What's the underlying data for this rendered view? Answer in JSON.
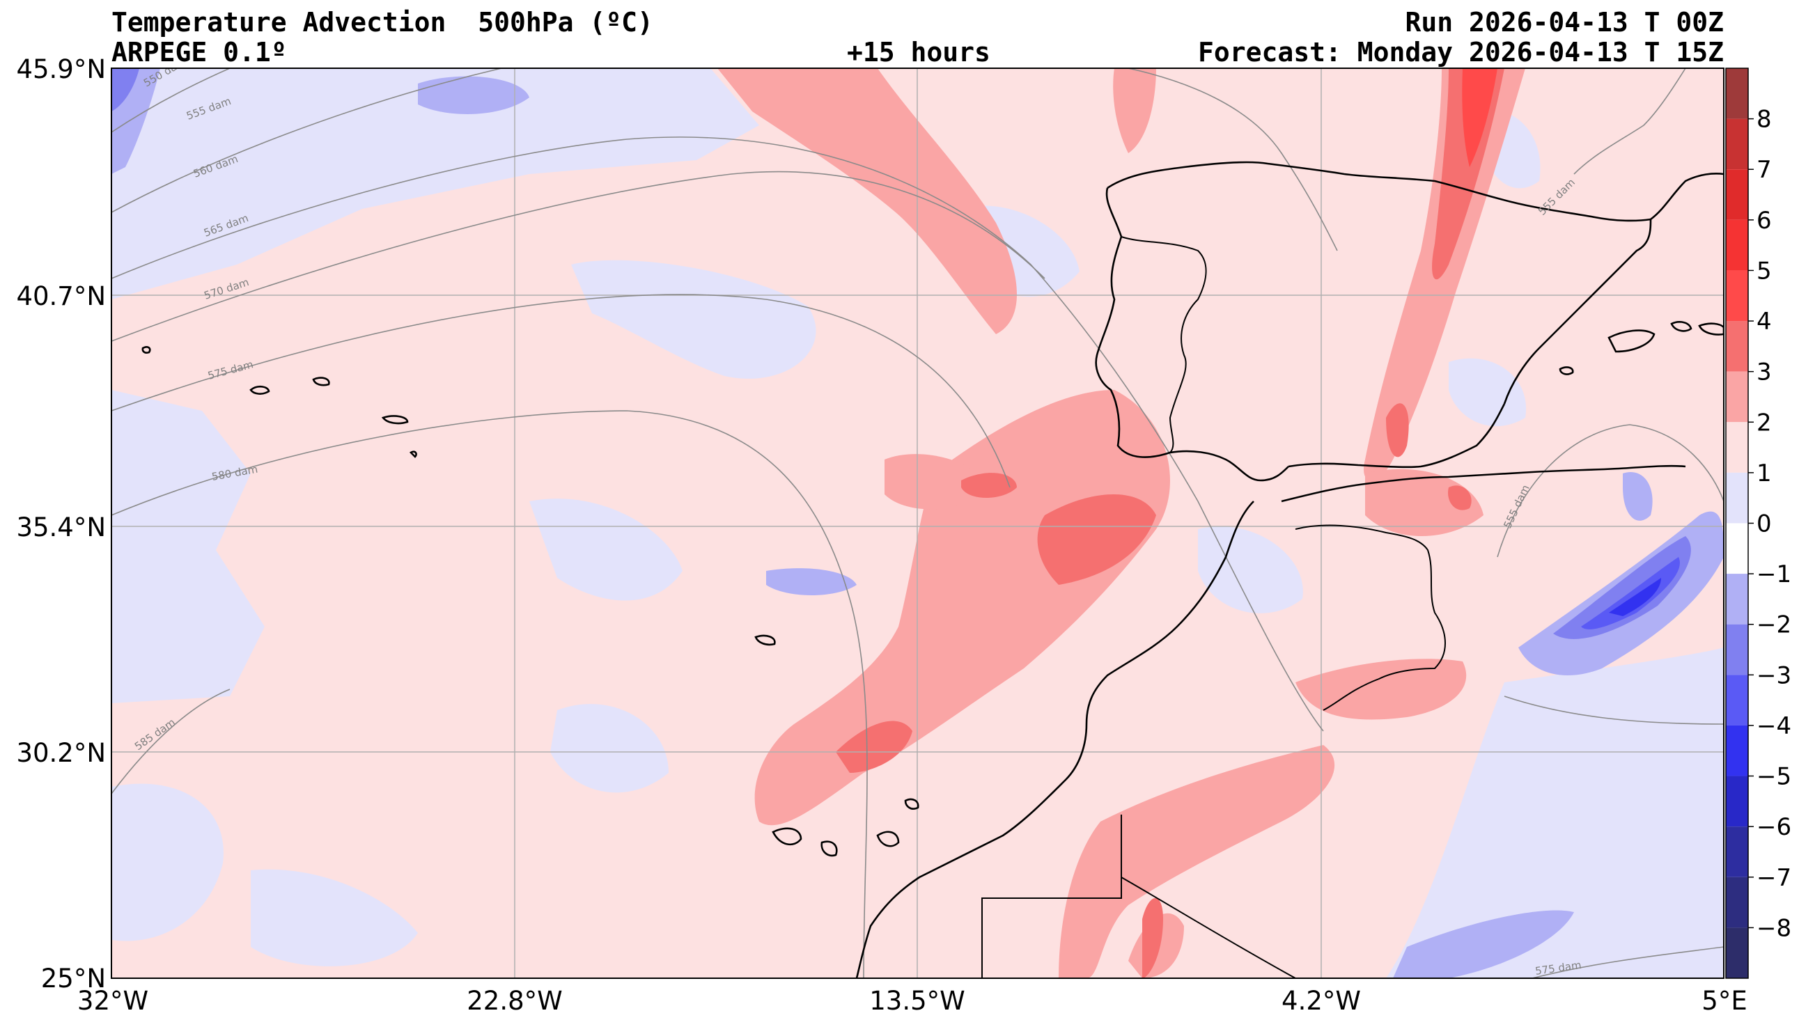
{
  "header": {
    "title": "Temperature Advection  500hPa (ºC)",
    "model": "ARPEGE 0.1º",
    "lead": "+15 hours",
    "run": "Run 2026-04-13 T 00Z",
    "forecast": "Forecast: Monday 2026-04-13 T 15Z"
  },
  "map": {
    "lon_range": [
      -32,
      5
    ],
    "lat_range": [
      25,
      45.9
    ],
    "lon_ticks": [
      {
        "value": -32,
        "label": "32°W"
      },
      {
        "value": -22.8,
        "label": "22.8°W"
      },
      {
        "value": -13.5,
        "label": "13.5°W"
      },
      {
        "value": -4.2,
        "label": "4.2°W"
      },
      {
        "value": 5,
        "label": "5°E"
      }
    ],
    "lat_ticks": [
      {
        "value": 45.9,
        "label": "45.9°N"
      },
      {
        "value": 40.7,
        "label": "40.7°N"
      },
      {
        "value": 35.4,
        "label": "35.4°N"
      },
      {
        "value": 30.2,
        "label": "30.2°N"
      },
      {
        "value": 25,
        "label": "25°N"
      }
    ],
    "geopotential_contour_labels": [
      "550 dam",
      "555 dam",
      "560 dam",
      "565 dam",
      "570 dam",
      "575 dam",
      "580 dam",
      "585 dam",
      "555 dam",
      "555 dam",
      "575 dam"
    ]
  },
  "colorbar": {
    "levels": [
      {
        "value": 8,
        "label": "8",
        "color": "#9e3a3a"
      },
      {
        "value": 7,
        "label": "7",
        "color": "#c83232"
      },
      {
        "value": 6,
        "label": "6",
        "color": "#e02b2b"
      },
      {
        "value": 5,
        "label": "5",
        "color": "#f53333"
      },
      {
        "value": 4,
        "label": "4",
        "color": "#ff4a4a"
      },
      {
        "value": 3,
        "label": "3",
        "color": "#f57070"
      },
      {
        "value": 2,
        "label": "2",
        "color": "#faa5a5"
      },
      {
        "value": 1,
        "label": "1",
        "color": "#fde1e1"
      },
      {
        "value": 0,
        "label": "0",
        "color": "#e3e3fb"
      },
      {
        "value": -1,
        "label": "−1",
        "color": "#b0b0f5"
      },
      {
        "value": -2,
        "label": "−2",
        "color": "#8080f0"
      },
      {
        "value": -3,
        "label": "−3",
        "color": "#5a5af5"
      },
      {
        "value": -4,
        "label": "−4",
        "color": "#3232f0"
      },
      {
        "value": -5,
        "label": "−5",
        "color": "#2828c8"
      },
      {
        "value": -6,
        "label": "−6",
        "color": "#2d2da0"
      },
      {
        "value": -7,
        "label": "−7",
        "color": "#2d2d80"
      },
      {
        "value": -8,
        "label": "−8",
        "color": "#2d2d6a"
      }
    ]
  }
}
